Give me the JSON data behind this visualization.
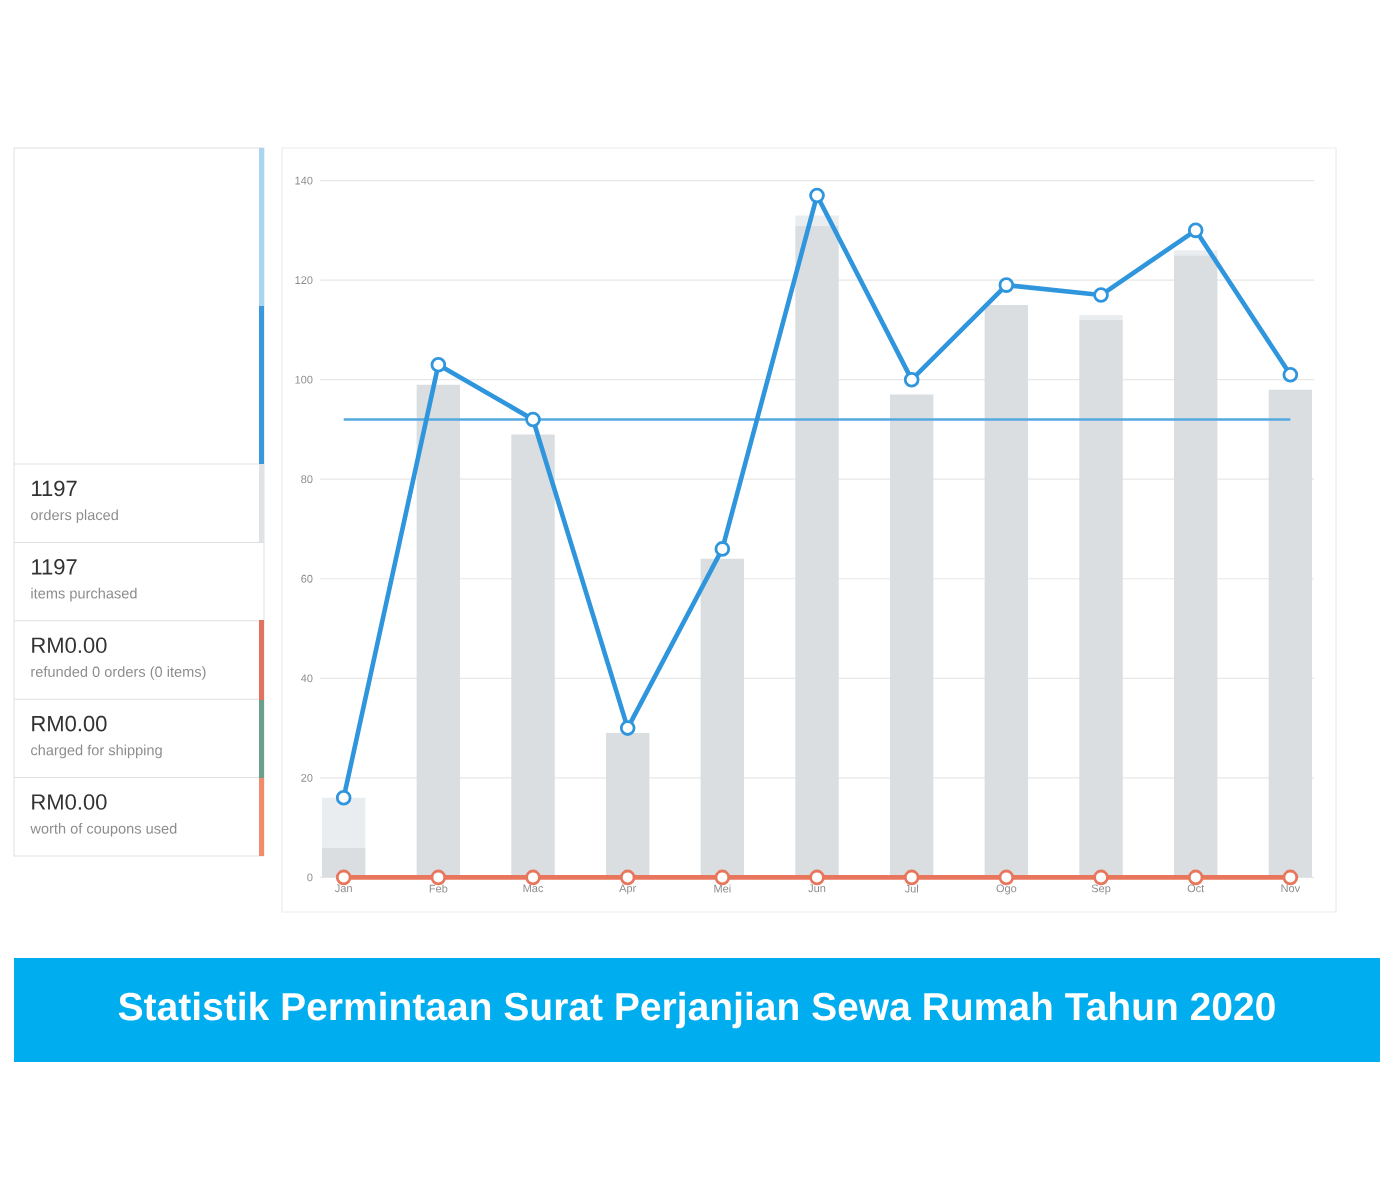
{
  "chart_data": [
    {
      "type": "other",
      "annotations": [
        "1197",
        "orders placed",
        "1197",
        "items purchased",
        "RM0.00",
        "refunded 0 orders (0 items)",
        "RM0.00",
        "charged for shipping",
        "RM0.00",
        "worth of coupons used"
      ]
    },
    {
      "type": "bar",
      "title": "Statistik Permintaan Surat Perjanjian Sewa Rumah Tahun 2020",
      "categories": [
        "Jan",
        "Feb",
        "Mac",
        "Apr",
        "Mei",
        "Jun",
        "Jul",
        "Ogo",
        "Sep",
        "Oct",
        "Nov"
      ],
      "stacked": true,
      "series": [
        {
          "color": "#dadee1",
          "values": [
            6,
            99,
            89,
            29,
            64,
            131,
            97,
            115,
            112,
            125,
            98
          ]
        },
        {
          "color": "#eaedef",
          "values": [
            10,
            null,
            null,
            null,
            null,
            2,
            null,
            null,
            1,
            1,
            null
          ]
        },
        {
          "type": "line",
          "color": "#2f96dd",
          "values": [
            16,
            103,
            92,
            30,
            66,
            137,
            100,
            119,
            117,
            130,
            101
          ]
        },
        {
          "type": "line",
          "color": "#e8765c",
          "values": [
            0,
            0,
            0,
            0,
            0,
            0,
            0,
            0,
            0,
            0,
            0
          ]
        }
      ],
      "ref_lines": [
        {
          "axis": "y",
          "value": 92,
          "color": "#54a8e0"
        }
      ],
      "ylim": [
        0,
        140
      ],
      "yticks": [
        0,
        20,
        40,
        60,
        80,
        100,
        120,
        140
      ],
      "grid": "y",
      "marker": "circle"
    }
  ]
}
